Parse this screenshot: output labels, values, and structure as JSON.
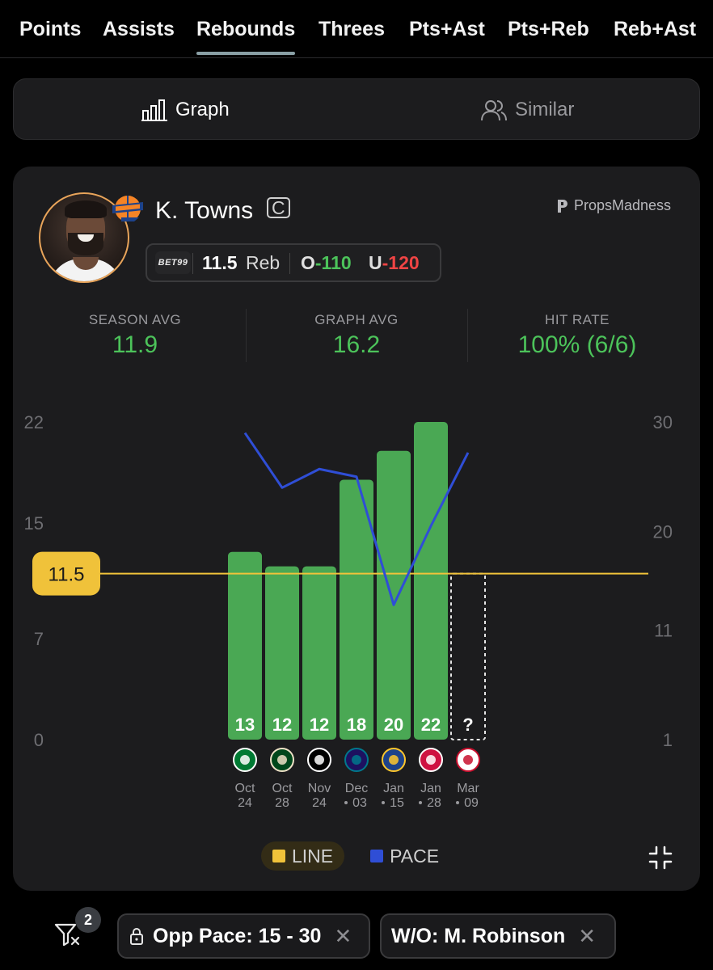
{
  "tabs": [
    {
      "label": "Points",
      "active": false
    },
    {
      "label": "Assists",
      "active": false
    },
    {
      "label": "Rebounds",
      "active": true
    },
    {
      "label": "Threes",
      "active": false
    },
    {
      "label": "Pts+Ast",
      "active": false
    },
    {
      "label": "Pts+Reb",
      "active": false
    },
    {
      "label": "Reb+Ast",
      "active": false
    }
  ],
  "view_toggle": {
    "graph_label": "Graph",
    "similar_label": "Similar",
    "active": "graph"
  },
  "player": {
    "name": "K. Towns",
    "position": "C",
    "team_logo": "knicks-logo-icon"
  },
  "brand": "PropsMadness",
  "prop_line": {
    "book": "BET99",
    "line": "11.5",
    "stat": "Reb",
    "over_label": "O",
    "over_odds": "-110",
    "under_label": "U",
    "under_odds": "-120"
  },
  "stats": [
    {
      "label": "SEASON AVG",
      "value": "11.9"
    },
    {
      "label": "GRAPH AVG",
      "value": "16.2"
    },
    {
      "label": "HIT RATE",
      "value": "100% (6/6)"
    }
  ],
  "chart_data": {
    "type": "bar",
    "categories": [
      "Oct 24",
      "Oct 28",
      "Nov 24",
      "Dec 03",
      "Jan 15",
      "Jan 28",
      "Mar 09"
    ],
    "dates": [
      {
        "month": "Oct",
        "day": "24",
        "dot": false
      },
      {
        "month": "Oct",
        "day": "28",
        "dot": false
      },
      {
        "month": "Nov",
        "day": "24",
        "dot": false
      },
      {
        "month": "Dec",
        "day": "03",
        "dot": true
      },
      {
        "month": "Jan",
        "day": "15",
        "dot": true
      },
      {
        "month": "Jan",
        "day": "28",
        "dot": true
      },
      {
        "month": "Mar",
        "day": "09",
        "dot": true
      }
    ],
    "opponents": [
      "celtics",
      "bucks",
      "nets",
      "hornets",
      "warriors",
      "raptors",
      "clippers"
    ],
    "values": [
      13,
      12,
      12,
      18,
      20,
      22,
      null
    ],
    "bar_labels": [
      "13",
      "12",
      "12",
      "18",
      "20",
      "22",
      "?"
    ],
    "line": 11.5,
    "line_label": "11.5",
    "left_axis": {
      "ticks": [
        0,
        7,
        15,
        22
      ]
    },
    "right_axis": {
      "ticks": [
        1,
        11,
        20,
        30
      ]
    },
    "series": [
      {
        "name": "LINE",
        "type": "hline",
        "value": 11.5,
        "color": "#f0c23a"
      },
      {
        "name": "PACE",
        "type": "line",
        "axis": "right",
        "values": [
          29.0,
          24.0,
          25.7,
          25.0,
          13.3,
          20.5,
          27.2
        ],
        "color": "#2f4ed6"
      }
    ],
    "bar_color": "#4aa854",
    "legend": [
      "LINE",
      "PACE"
    ]
  },
  "filters": {
    "count": "2",
    "chips": [
      {
        "label": "Opp Pace: 15 - 30",
        "locked": true
      },
      {
        "label": "W/O: M. Robinson",
        "locked": false
      }
    ]
  }
}
